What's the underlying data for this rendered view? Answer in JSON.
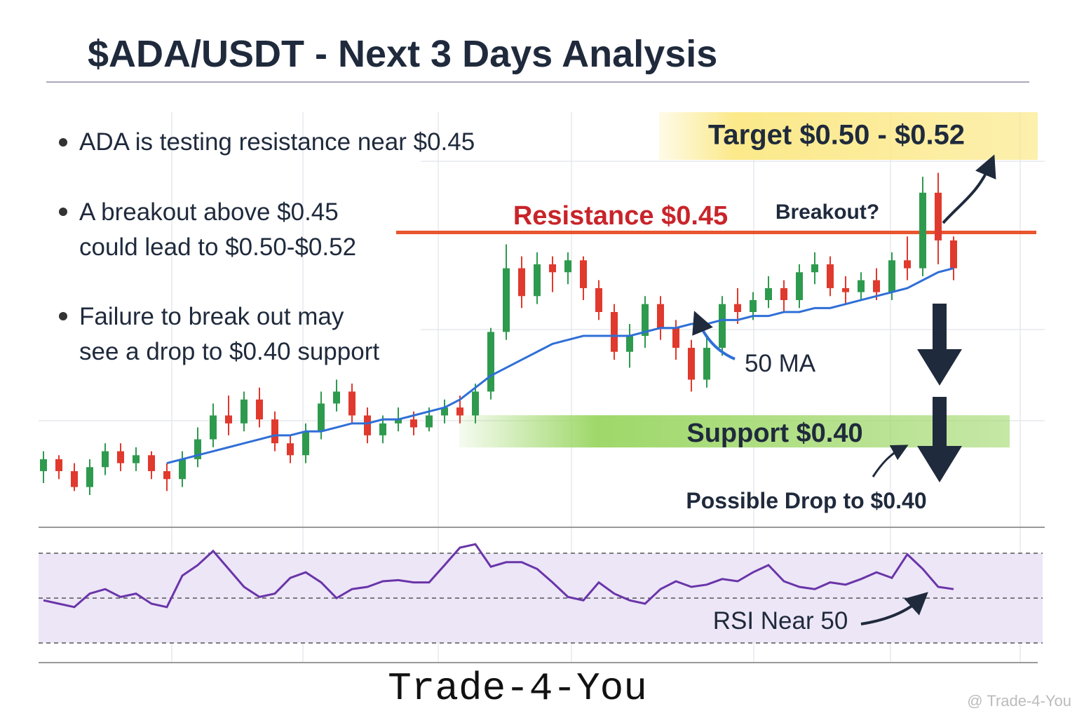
{
  "title": "$ADA/USDT - Next 3 Days Analysis",
  "bullets": [
    [
      "ADA is testing resistance near $0.45"
    ],
    [
      "A breakout above $0.45",
      "could lead to $0.50-$0.52"
    ],
    [
      "Failure to break out may",
      "see a drop to $0.40 support"
    ]
  ],
  "footer": "Trade-4-You",
  "watermark": "@ Trade-4-You",
  "chart_data": [
    {
      "type": "candlestick",
      "open": [
        0.39,
        0.393,
        0.39,
        0.386,
        0.391,
        0.395,
        0.392,
        0.394,
        0.39,
        0.388,
        0.393,
        0.398,
        0.404,
        0.402,
        0.408,
        0.403,
        0.397,
        0.394,
        0.4,
        0.407,
        0.41,
        0.404,
        0.399,
        0.402,
        0.403,
        0.401,
        0.404,
        0.406,
        0.404,
        0.41,
        0.425,
        0.441,
        0.434,
        0.442,
        0.44,
        0.443,
        0.436,
        0.43,
        0.42,
        0.424,
        0.432,
        0.426,
        0.421,
        0.413,
        0.421,
        0.432,
        0.43,
        0.433,
        0.436,
        0.433,
        0.44,
        0.442,
        0.436,
        0.435,
        0.438,
        0.435,
        0.443,
        0.441,
        0.46,
        0.448
      ],
      "close": [
        0.393,
        0.39,
        0.386,
        0.391,
        0.395,
        0.392,
        0.394,
        0.39,
        0.388,
        0.393,
        0.398,
        0.404,
        0.402,
        0.408,
        0.403,
        0.397,
        0.394,
        0.4,
        0.407,
        0.41,
        0.404,
        0.399,
        0.402,
        0.403,
        0.401,
        0.404,
        0.406,
        0.404,
        0.41,
        0.425,
        0.441,
        0.434,
        0.442,
        0.44,
        0.443,
        0.436,
        0.43,
        0.42,
        0.424,
        0.432,
        0.426,
        0.421,
        0.413,
        0.421,
        0.432,
        0.43,
        0.433,
        0.436,
        0.433,
        0.44,
        0.442,
        0.436,
        0.435,
        0.438,
        0.435,
        0.443,
        0.441,
        0.46,
        0.448,
        0.441
      ],
      "high": [
        0.395,
        0.394,
        0.392,
        0.393,
        0.397,
        0.397,
        0.396,
        0.395,
        0.392,
        0.395,
        0.401,
        0.407,
        0.409,
        0.41,
        0.411,
        0.405,
        0.399,
        0.402,
        0.41,
        0.413,
        0.412,
        0.406,
        0.404,
        0.406,
        0.405,
        0.406,
        0.408,
        0.409,
        0.412,
        0.426,
        0.447,
        0.444,
        0.445,
        0.444,
        0.445,
        0.444,
        0.438,
        0.432,
        0.427,
        0.434,
        0.434,
        0.428,
        0.423,
        0.424,
        0.434,
        0.436,
        0.435,
        0.439,
        0.438,
        0.442,
        0.445,
        0.444,
        0.439,
        0.44,
        0.441,
        0.445,
        0.449,
        0.464,
        0.465,
        0.449
      ],
      "low": [
        0.387,
        0.388,
        0.385,
        0.384,
        0.389,
        0.39,
        0.39,
        0.388,
        0.385,
        0.386,
        0.391,
        0.396,
        0.399,
        0.4,
        0.401,
        0.395,
        0.392,
        0.392,
        0.398,
        0.405,
        0.402,
        0.397,
        0.397,
        0.4,
        0.399,
        0.4,
        0.402,
        0.402,
        0.402,
        0.408,
        0.423,
        0.431,
        0.432,
        0.435,
        0.437,
        0.433,
        0.428,
        0.418,
        0.416,
        0.421,
        0.423,
        0.418,
        0.41,
        0.411,
        0.419,
        0.427,
        0.428,
        0.431,
        0.43,
        0.431,
        0.437,
        0.434,
        0.432,
        0.433,
        0.433,
        0.433,
        0.438,
        0.439,
        0.442,
        0.438
      ],
      "up_color": "#2e9a4e",
      "down_color": "#e0392d",
      "ylim": [
        0.378,
        0.482
      ],
      "series": [
        {
          "name": "50 MA",
          "color": "#2f6fd6",
          "values": [
            null,
            null,
            null,
            null,
            null,
            null,
            null,
            null,
            0.392,
            0.393,
            0.394,
            0.395,
            0.396,
            0.397,
            0.398,
            0.399,
            0.399,
            0.4,
            0.4,
            0.401,
            0.402,
            0.402,
            0.403,
            0.403,
            0.404,
            0.405,
            0.406,
            0.408,
            0.411,
            0.414,
            0.416,
            0.418,
            0.42,
            0.422,
            0.423,
            0.424,
            0.424,
            0.424,
            0.424,
            0.425,
            0.426,
            0.426,
            0.427,
            0.427,
            0.428,
            0.428,
            0.429,
            0.429,
            0.43,
            0.43,
            0.431,
            0.431,
            0.432,
            0.433,
            0.434,
            0.435,
            0.436,
            0.438,
            0.44,
            0.441
          ]
        }
      ],
      "levels": [
        {
          "label": "Resistance $0.45",
          "value": 0.45,
          "color": "#e8552f"
        },
        {
          "label": "Support $0.40",
          "value": 0.4,
          "color": "#9fd86a"
        }
      ],
      "annotations": [
        "Target $0.50 - $0.52",
        "Breakout?",
        "Possible Drop to $0.40"
      ]
    },
    {
      "type": "line",
      "values": [
        49,
        47.5,
        46,
        52,
        54,
        50.5,
        52,
        47.5,
        46,
        60,
        64.7,
        71,
        63,
        55,
        50.5,
        52,
        59,
        61.5,
        57,
        50,
        54,
        55,
        57.5,
        58,
        57,
        57,
        64.7,
        72.5,
        74,
        64,
        66,
        66,
        63,
        57,
        50.5,
        49,
        57,
        52,
        49,
        47.5,
        54,
        57.5,
        55,
        56,
        58.5,
        57.5,
        61.5,
        64.7,
        57.5,
        55,
        54,
        57,
        56,
        58.5,
        61.5,
        59,
        69.5,
        63,
        55,
        54
      ],
      "color": "#6a35a8",
      "ylim": [
        20,
        80
      ],
      "levels": [
        70,
        50,
        30
      ],
      "annotation": "RSI Near 50"
    }
  ]
}
